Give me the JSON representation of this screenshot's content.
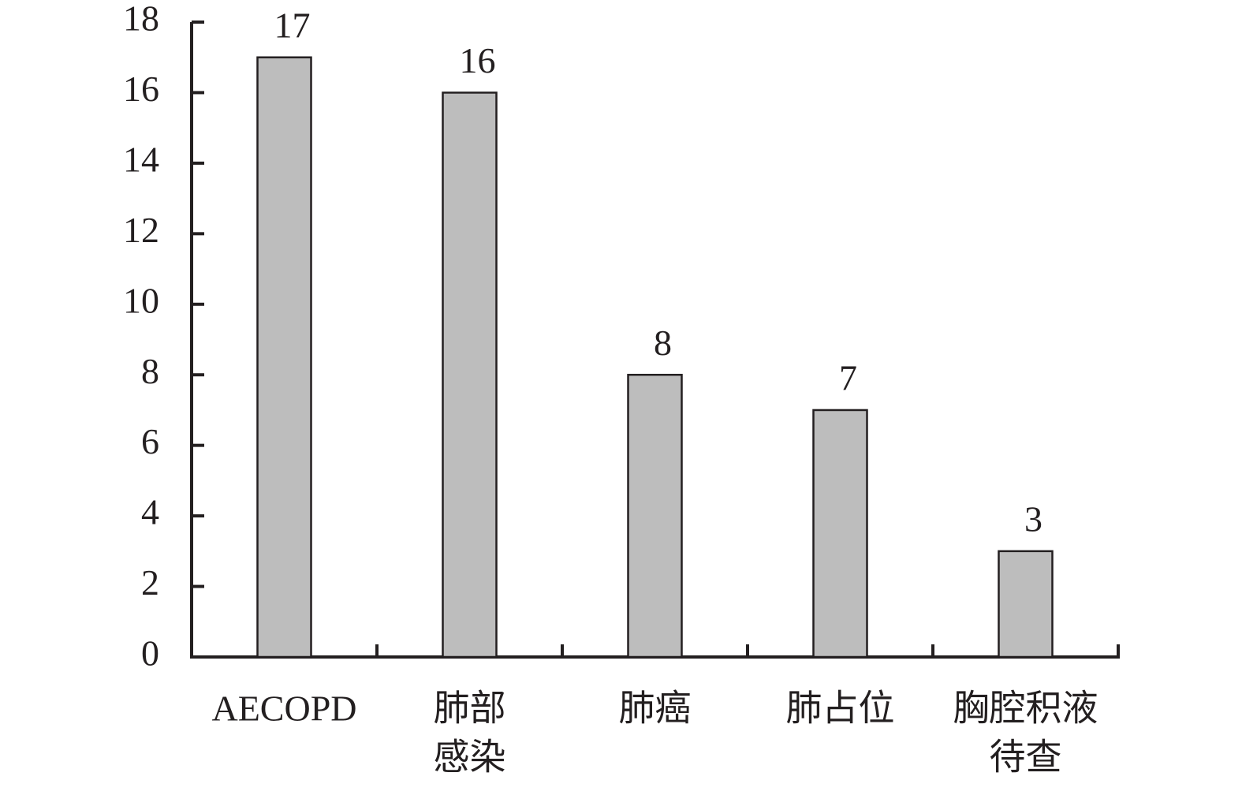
{
  "chart_data": {
    "type": "bar",
    "categories": [
      [
        "AECOPD"
      ],
      [
        "肺部",
        "感染"
      ],
      [
        "肺癌"
      ],
      [
        "肺占位"
      ],
      [
        "胸腔积液",
        "待查"
      ]
    ],
    "values": [
      17,
      16,
      8,
      7,
      3
    ],
    "color": "#bdbdbd",
    "ylim": [
      0,
      18
    ],
    "yticks": [
      0,
      2,
      4,
      6,
      8,
      10,
      12,
      14,
      16,
      18
    ]
  }
}
